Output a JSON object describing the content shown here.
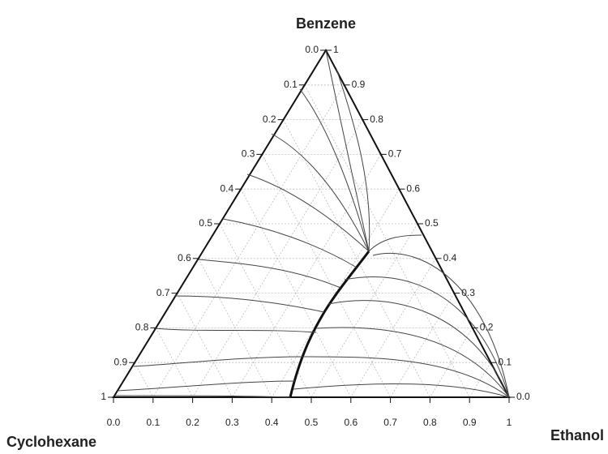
{
  "vertices": {
    "top": "Benzene",
    "left": "Cyclohexane",
    "right": "Ethanol"
  },
  "bottom_axis": [
    "0.0",
    "0.1",
    "0.2",
    "0.3",
    "0.4",
    "0.5",
    "0.6",
    "0.7",
    "0.8",
    "0.9",
    "1"
  ],
  "left_axis": [
    "0.0",
    "0.1",
    "0.2",
    "0.3",
    "0.4",
    "0.5",
    "0.6",
    "0.7",
    "0.8",
    "0.9",
    "1"
  ],
  "right_axis": [
    "1",
    "0.9",
    "0.8",
    "0.7",
    "0.6",
    "0.5",
    "0.4",
    "0.3",
    "0.2",
    "0.1",
    "0.0"
  ]
}
